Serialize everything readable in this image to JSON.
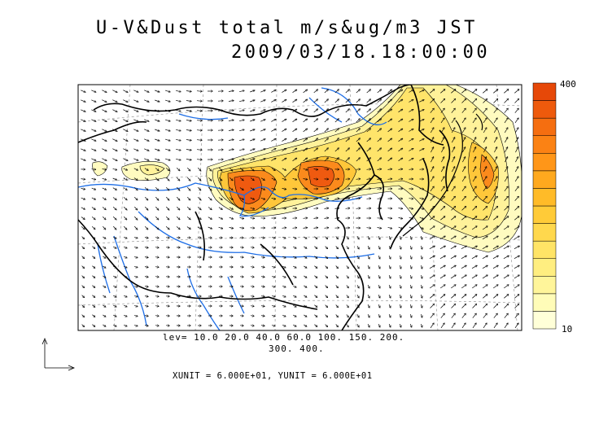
{
  "title_line1": "U-V&Dust total m/s&ug/m3 JST",
  "title_line2": "2009/03/18.18:00:00",
  "contour_levels_line1": "lev= 10.0 20.0 40.0 60.0 100. 150. 200.",
  "contour_levels_line2": "300. 400.",
  "units_text": "XUNIT = 6.000E+01, YUNIT = 6.000E+01",
  "colorbar": {
    "max_label": "400",
    "min_label": "10",
    "colors": [
      "#ffffd8",
      "#fffcb8",
      "#fff59a",
      "#ffee80",
      "#ffe466",
      "#ffd84d",
      "#ffcb38",
      "#ffbb28",
      "#ffa91e",
      "#ff9618",
      "#fb8214",
      "#f56e10",
      "#ee5a0c",
      "#e64808"
    ]
  },
  "colors": {
    "rivers": "#1e6ee6",
    "coast": "#000000",
    "dust_low": "#fff7a8",
    "dust_high": "#ef5a10"
  },
  "legend_icon": "vector-reference-arrow-icon"
}
